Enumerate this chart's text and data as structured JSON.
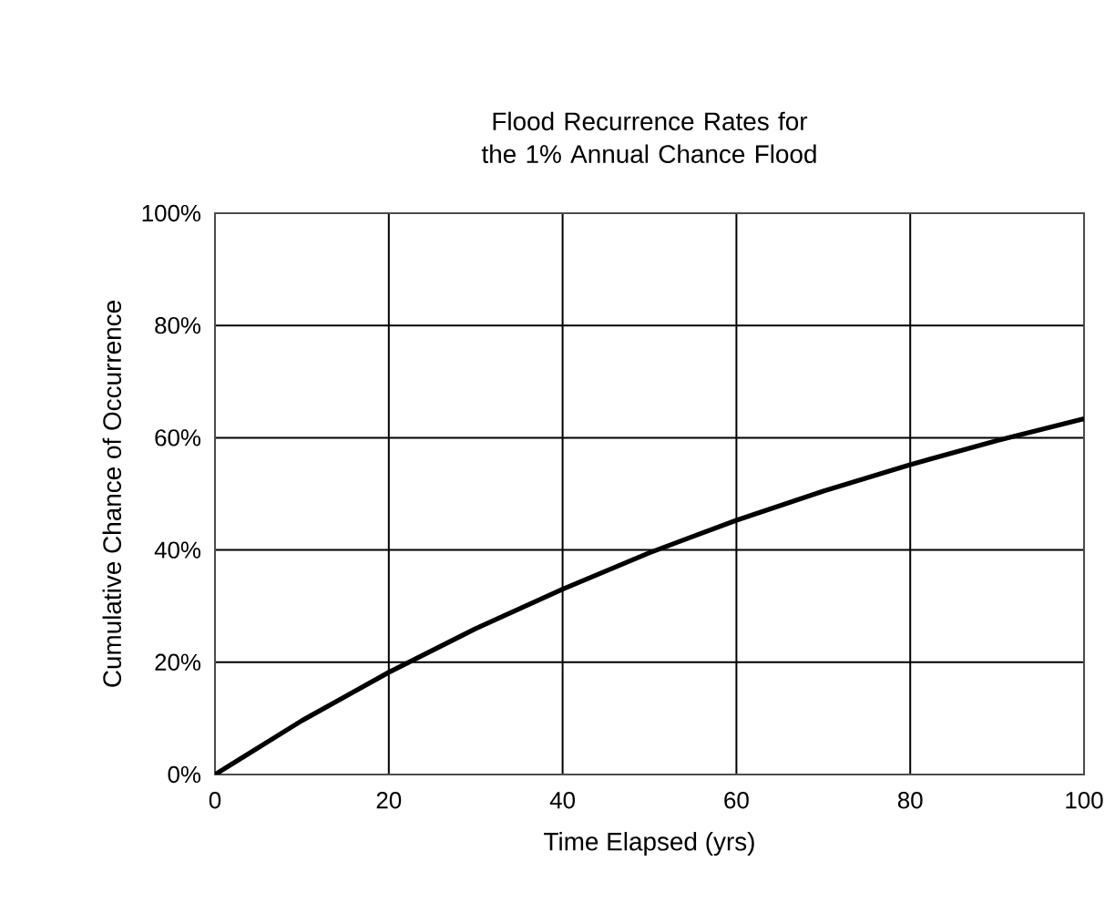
{
  "chart_data": {
    "type": "line",
    "title": "Flood Recurrence Rates for the 1% Annual Chance Flood",
    "xlabel": "Time Elapsed (yrs)",
    "ylabel": "Cumulative Chance of Occurrence",
    "x": [
      0,
      10,
      20,
      30,
      40,
      50,
      60,
      70,
      80,
      90,
      100
    ],
    "series": [
      {
        "color": "#000000",
        "values": [
          0,
          9.6,
          18.2,
          26,
          33,
          39.5,
          45.3,
          50.5,
          55.2,
          59.5,
          63.4
        ]
      }
    ],
    "xlim": [
      0,
      100
    ],
    "xticks": [
      0,
      20,
      40,
      60,
      80,
      100
    ],
    "ylim": [
      0,
      100
    ],
    "yticks": [
      {
        "value": 0,
        "label": "0%"
      },
      {
        "value": 20,
        "label": "20%"
      },
      {
        "value": 40,
        "label": "40%"
      },
      {
        "value": 60,
        "label": "60%"
      },
      {
        "value": 80,
        "label": "80%"
      },
      {
        "value": 100,
        "label": "100%"
      }
    ],
    "grid": true,
    "marker": "none",
    "line_style": "solid"
  }
}
